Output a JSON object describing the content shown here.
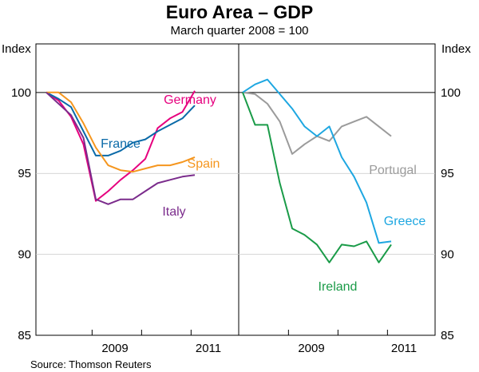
{
  "chart_data": {
    "type": "line",
    "title": "Euro Area – GDP",
    "subtitle": "March quarter 2008 = 100",
    "source": "Source: Thomson Reuters",
    "ylabel_left": "Index",
    "ylabel_right": "Index",
    "ylim": [
      85,
      103
    ],
    "yticks": [
      85,
      90,
      95,
      100
    ],
    "grid": "horizontal",
    "panels": [
      {
        "name": "left",
        "xticks": [
          "2009",
          "2011"
        ],
        "series": [
          {
            "name": "Germany",
            "color": "#e6007e",
            "values": [
              100,
              99.5,
              98.5,
              96.8,
              93.3,
              93.9,
              94.6,
              95.2,
              95.9,
              97.8,
              98.4,
              98.8,
              100.1
            ]
          },
          {
            "name": "France",
            "color": "#0a6aa8",
            "values": [
              100,
              99.6,
              99.1,
              97.6,
              96.1,
              96.1,
              96.4,
              96.9,
              97.1,
              97.6,
              98.0,
              98.4,
              99.2
            ]
          },
          {
            "name": "Spain",
            "color": "#f5961e",
            "values": [
              100,
              100,
              99.4,
              98.1,
              96.6,
              95.5,
              95.2,
              95.1,
              95.3,
              95.5,
              95.5,
              95.7,
              96.0
            ]
          },
          {
            "name": "Italy",
            "color": "#7b2c8c",
            "values": [
              100,
              99.3,
              98.6,
              97.2,
              93.4,
              93.1,
              93.4,
              93.4,
              93.9,
              94.4,
              94.6,
              94.8,
              94.9
            ]
          }
        ]
      },
      {
        "name": "right",
        "xticks": [
          "2009",
          "2011"
        ],
        "series": [
          {
            "name": "Portugal",
            "color": "#9b9b9b",
            "values": [
              100,
              99.9,
              99.3,
              98.2,
              96.2,
              96.8,
              97.3,
              97.0,
              97.9,
              98.2,
              98.5,
              97.9,
              97.3
            ]
          },
          {
            "name": "Greece",
            "color": "#1ea7e1",
            "values": [
              100,
              100.5,
              100.8,
              99.9,
              99.0,
              97.9,
              97.3,
              97.9,
              96.0,
              94.8,
              93.2,
              90.7,
              90.8
            ]
          },
          {
            "name": "Ireland",
            "color": "#1a9b48",
            "values": [
              100,
              98.0,
              98.0,
              94.4,
              91.6,
              91.2,
              90.6,
              89.5,
              90.6,
              90.5,
              90.8,
              89.5,
              90.6
            ]
          }
        ]
      }
    ]
  }
}
